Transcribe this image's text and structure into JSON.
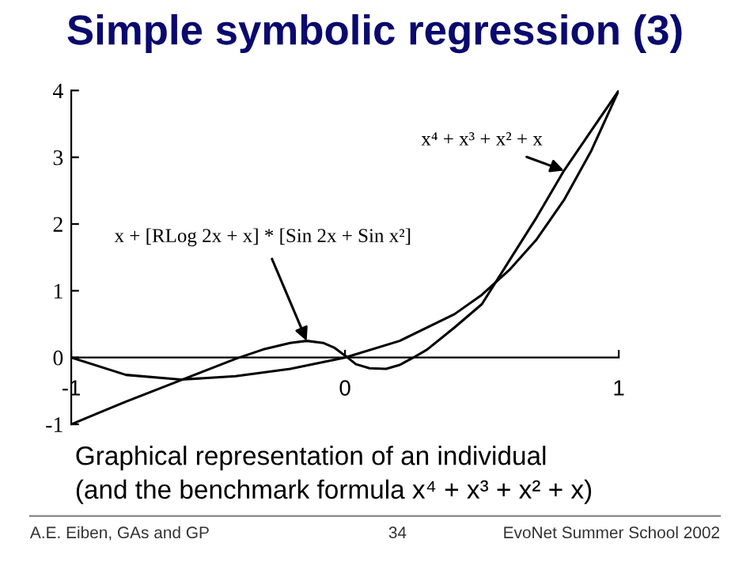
{
  "chart_data": {
    "type": "line",
    "title": "Simple symbolic regression (3)",
    "xlim": [
      -1,
      1
    ],
    "ylim": [
      -1,
      4
    ],
    "xticks": [
      -1,
      0,
      1
    ],
    "yticks": [
      -1,
      0,
      1,
      2,
      3,
      4
    ],
    "grid": false,
    "legend": false,
    "marker": "none",
    "line_style": "solid",
    "series": [
      {
        "color": "#000000",
        "x": [
          -1,
          -0.8,
          -0.6,
          -0.4,
          -0.2,
          0,
          0.2,
          0.4,
          0.5,
          0.6,
          0.7,
          0.8,
          0.9,
          1
        ],
        "values": [
          0,
          -0.26,
          -0.33,
          -0.28,
          -0.17,
          0,
          0.25,
          0.65,
          0.94,
          1.31,
          1.77,
          2.36,
          3.1,
          4
        ]
      },
      {
        "color": "#000000",
        "x": [
          -1,
          -0.9,
          -0.8,
          -0.7,
          -0.6,
          -0.5,
          -0.4,
          -0.3,
          -0.2,
          -0.14,
          -0.08,
          -0.04,
          0,
          0.04,
          0.09,
          0.15,
          0.2,
          0.25,
          0.3,
          0.4,
          0.5,
          0.6,
          0.7,
          0.8,
          0.9,
          1
        ],
        "values": [
          -1,
          -0.83,
          -0.66,
          -0.5,
          -0.34,
          -0.18,
          -0.02,
          0.12,
          0.22,
          0.25,
          0.22,
          0.15,
          0.03,
          -0.1,
          -0.16,
          -0.17,
          -0.11,
          0,
          0.12,
          0.45,
          0.8,
          1.45,
          2.1,
          2.8,
          3.4,
          4
        ]
      }
    ],
    "annotations": [
      {
        "text": "x⁴ + x³ + x² + x",
        "x": 0.8,
        "y": 2.8
      },
      {
        "text": "x + [RLog 2x + x] * [Sin 2x + Sin x²]",
        "x": -0.14,
        "y": 0.25
      },
      "Graphical representation of an individual",
      "(and the benchmark formula x⁴ + x³ + x² + x)",
      "A.E. Eiben, GAs and GP",
      "34",
      "EvoNet Summer School 2002"
    ]
  }
}
